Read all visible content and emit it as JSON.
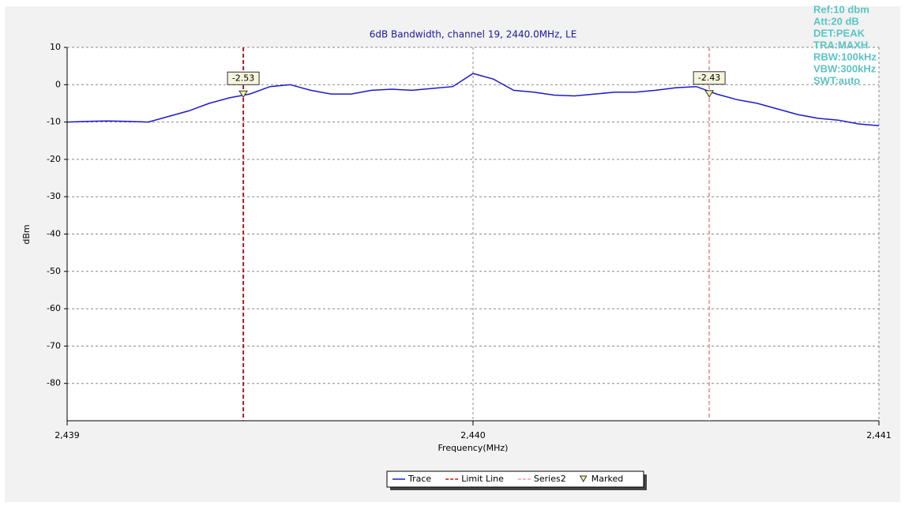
{
  "chart_data": {
    "type": "line",
    "title": "6dB Bandwidth,  channel 19, 2440.0MHz, LE",
    "x_label": "Frequency(MHz)",
    "y_label": "dBm",
    "xlim": [
      2439,
      2441
    ],
    "xticks": [
      {
        "value": 2439,
        "label": "2,439"
      },
      {
        "value": 2440,
        "label": "2,440"
      },
      {
        "value": 2441,
        "label": "2,441"
      }
    ],
    "ylim": [
      -90,
      10
    ],
    "yticks": [
      10,
      0,
      -10,
      -20,
      -30,
      -40,
      -50,
      -60,
      -70,
      -80
    ],
    "grid": true,
    "series": [
      {
        "name": "Trace",
        "color": "#1a1acc",
        "style": "solid",
        "x": [
          2439.0,
          2439.05,
          2439.1,
          2439.15,
          2439.2,
          2439.25,
          2439.3,
          2439.35,
          2439.4,
          2439.45,
          2439.5,
          2439.55,
          2439.6,
          2439.65,
          2439.7,
          2439.75,
          2439.8,
          2439.85,
          2439.9,
          2439.95,
          2440.0,
          2440.05,
          2440.1,
          2440.15,
          2440.2,
          2440.25,
          2440.3,
          2440.35,
          2440.4,
          2440.45,
          2440.5,
          2440.55,
          2440.6,
          2440.65,
          2440.7,
          2440.75,
          2440.8,
          2440.85,
          2440.9,
          2440.95,
          2441.0
        ],
        "values": [
          -10,
          -9.8,
          -9.7,
          -9.8,
          -10,
          -8.5,
          -7,
          -5,
          -3.5,
          -2.5,
          -0.5,
          0,
          -1.5,
          -2.5,
          -2.5,
          -1.5,
          -1.2,
          -1.5,
          -1,
          -0.5,
          3,
          1.5,
          -1.5,
          -2,
          -2.8,
          -3,
          -2.5,
          -2,
          -2,
          -1.5,
          -0.8,
          -0.5,
          -2.5,
          -4,
          -5,
          -6.5,
          -8,
          -9,
          -9.5,
          -10.5,
          -11
        ]
      },
      {
        "name": "Limit Line",
        "color": "#cc1111",
        "style": "dashed",
        "x": [
          2439.434,
          2439.434
        ],
        "values": [
          10,
          -90
        ]
      },
      {
        "name": "Series2",
        "color": "#f0a0a0",
        "style": "dashed",
        "x": [
          2440.582,
          2440.582
        ],
        "values": [
          10,
          -90
        ]
      }
    ],
    "marked": {
      "name": "Marked",
      "color": "#f0f0a0",
      "points": [
        {
          "x": 2439.434,
          "value": -2.53
        },
        {
          "x": 2440.582,
          "value": -2.43
        }
      ]
    },
    "annotations": [
      "Ref:10 dbm",
      "Att:20 dB",
      "DET:PEAK",
      "TRA:MAXH",
      "RBW:100kHz",
      "VBW:300kHz",
      "SWT:auto"
    ]
  }
}
